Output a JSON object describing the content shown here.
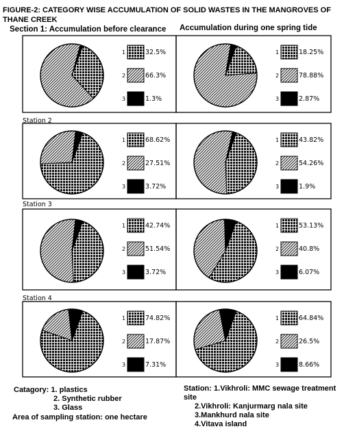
{
  "title_line1": "FIGURE-2: CATEGORY WISE ACCUMULATION OF SOLID WASTES IN THE MANGROVES OF",
  "title_line2": "THANE CREEK",
  "section1": "Section 1: Accumulation before clearance",
  "section2": "Accumulation during one spring tide",
  "category_heading": "Catagory:",
  "categories": [
    "1. plastics",
    "2. Synthetic rubber",
    "3. Glass"
  ],
  "area_note": "Area of sampling station: one hectare",
  "station_heading": "Station:",
  "stations": [
    "1.Vikhroli: MMC sewage treatment site",
    "2.Vikhroli: Kanjurmarg nala site",
    "3.Mankhurd nala site",
    "4.Vitava island"
  ],
  "colors": {
    "plastics": "#1a1a1a",
    "synthetic_rubber": "#bdbdbd",
    "glass": "#000000"
  },
  "chart_data": [
    {
      "type": "pie",
      "station_label": "",
      "panel": "before clearance",
      "categories": [
        "1",
        "2",
        "3"
      ],
      "values": [
        32.5,
        66.3,
        1.3
      ],
      "labels": [
        "32.5%",
        "66.3%",
        "1.3%"
      ]
    },
    {
      "type": "pie",
      "station_label": "",
      "panel": "one spring tide",
      "categories": [
        "1",
        "2",
        "3"
      ],
      "values": [
        18.25,
        78.88,
        2.87
      ],
      "labels": [
        "18.25%",
        "78.88%",
        "2.87%"
      ]
    },
    {
      "type": "pie",
      "station_label": "Station 2",
      "panel": "before clearance",
      "categories": [
        "1",
        "2",
        "3"
      ],
      "values": [
        68.62,
        27.51,
        3.72
      ],
      "labels": [
        "68.62%",
        "27.51%",
        "3.72%"
      ]
    },
    {
      "type": "pie",
      "station_label": "",
      "panel": "one spring tide",
      "categories": [
        "1",
        "2",
        "3"
      ],
      "values": [
        43.82,
        54.26,
        1.9
      ],
      "labels": [
        "43.82%",
        "54.26%",
        "1.9%"
      ]
    },
    {
      "type": "pie",
      "station_label": "Station 3",
      "panel": "before clearance",
      "categories": [
        "1",
        "2",
        "3"
      ],
      "values": [
        42.74,
        51.54,
        3.72
      ],
      "labels": [
        "42.74%",
        "51.54%",
        "3.72%"
      ]
    },
    {
      "type": "pie",
      "station_label": "",
      "panel": "one spring tide",
      "categories": [
        "1",
        "2",
        "3"
      ],
      "values": [
        53.13,
        40.8,
        6.07
      ],
      "labels": [
        "53.13%",
        "40.8%",
        "6.07%"
      ]
    },
    {
      "type": "pie",
      "station_label": "Station 4",
      "panel": "before clearance",
      "categories": [
        "1",
        "2",
        "3"
      ],
      "values": [
        74.82,
        17.87,
        7.31
      ],
      "labels": [
        "74.82%",
        "17.87%",
        "7.31%"
      ]
    },
    {
      "type": "pie",
      "station_label": "",
      "panel": "one spring tide",
      "categories": [
        "1",
        "2",
        "3"
      ],
      "values": [
        64.84,
        26.5,
        8.66
      ],
      "labels": [
        "64.84%",
        "26.5%",
        "8.66%"
      ]
    }
  ]
}
